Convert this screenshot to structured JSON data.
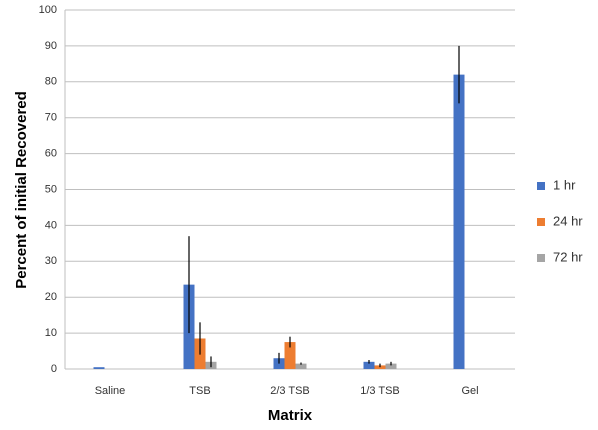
{
  "chart_data": {
    "type": "bar",
    "y_label": "Percent of initial Recovered",
    "x_label": "Matrix",
    "categories": [
      "Saline",
      "TSB",
      "2/3 TSB",
      "1/3 TSB",
      "Gel"
    ],
    "series": [
      {
        "name": "1 hr",
        "color": "#4472c4",
        "values": [
          0.5,
          23.5,
          3,
          2,
          82
        ],
        "errors": [
          null,
          13.5,
          1.5,
          0.5,
          8
        ]
      },
      {
        "name": "24 hr",
        "color": "#ed7d31",
        "values": [
          null,
          8.5,
          7.5,
          1,
          null
        ],
        "errors": [
          null,
          4.5,
          1.5,
          0.5,
          null
        ]
      },
      {
        "name": "72 hr",
        "color": "#a5a5a5",
        "values": [
          null,
          2,
          1.5,
          1.5,
          null
        ],
        "errors": [
          null,
          1.5,
          0.3,
          0.5,
          null
        ]
      }
    ],
    "ylim": [
      0,
      100
    ],
    "yticks": [
      0,
      10,
      20,
      30,
      40,
      50,
      60,
      70,
      80,
      90,
      100
    ],
    "grid": true,
    "legend": "right"
  }
}
